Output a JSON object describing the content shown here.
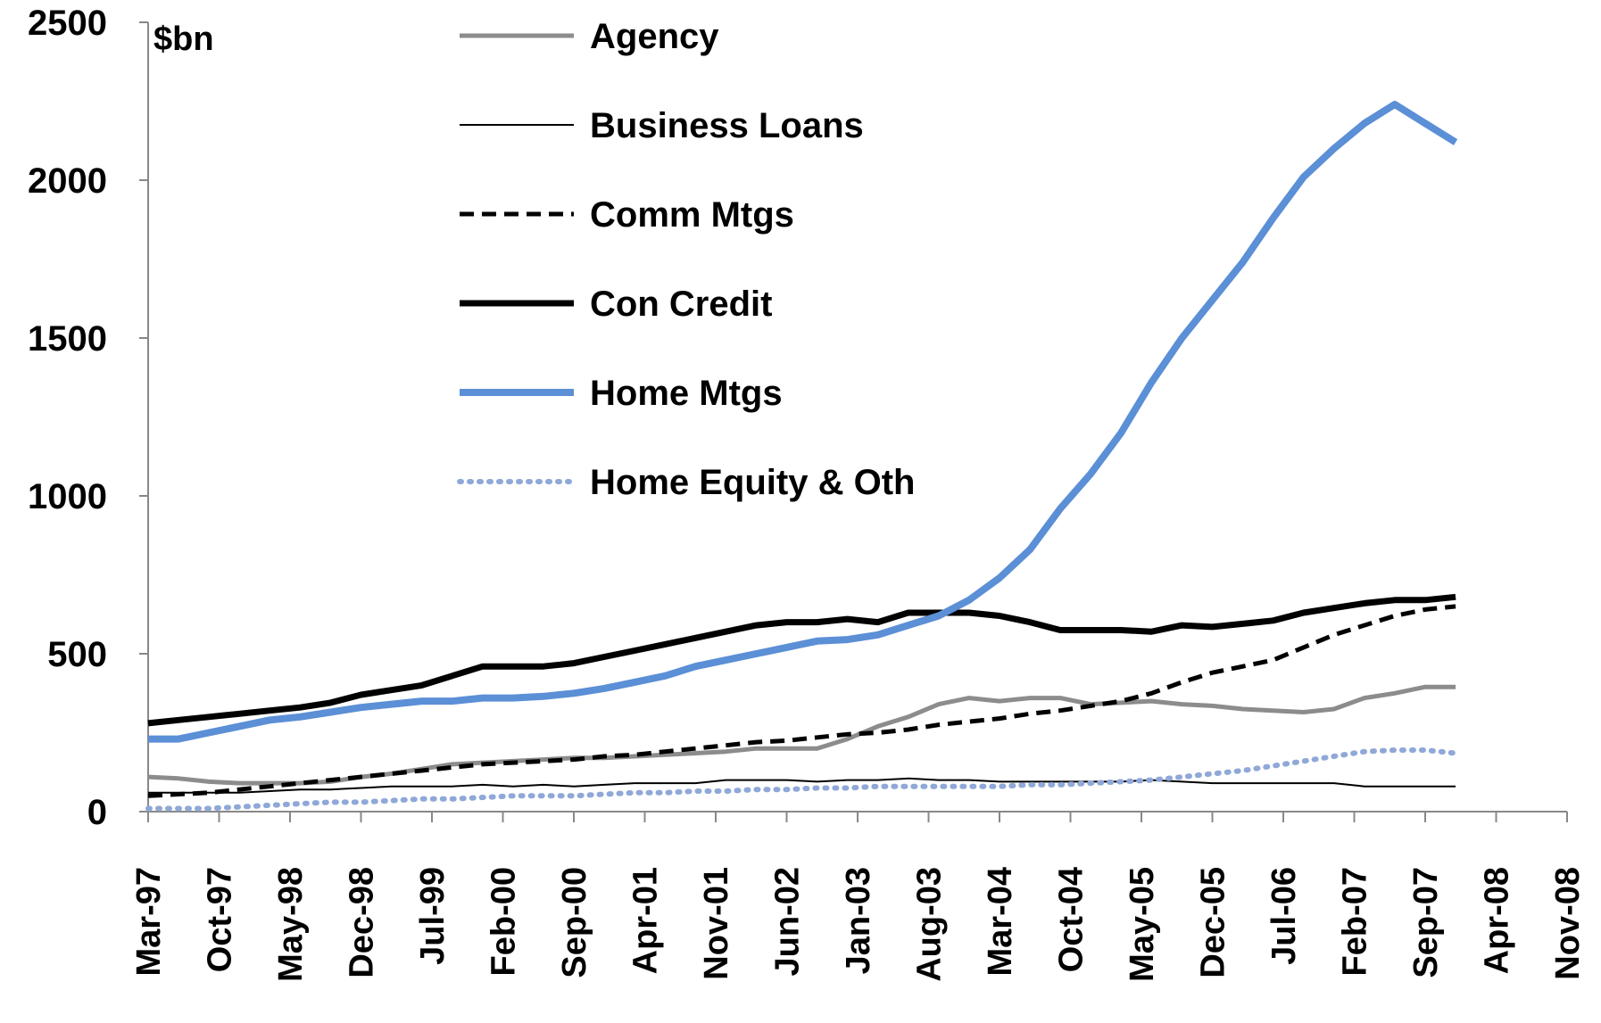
{
  "chart_data": {
    "type": "line",
    "y_label": "$bn",
    "x": [
      "Mar-97",
      "Jun-97",
      "Sep-97",
      "Dec-97",
      "Mar-98",
      "Jun-98",
      "Sep-98",
      "Dec-98",
      "Mar-99",
      "Jun-99",
      "Sep-99",
      "Dec-99",
      "Mar-00",
      "Jun-00",
      "Sep-00",
      "Dec-00",
      "Mar-01",
      "Jun-01",
      "Sep-01",
      "Dec-01",
      "Mar-02",
      "Jun-02",
      "Sep-02",
      "Dec-02",
      "Mar-03",
      "Jun-03",
      "Sep-03",
      "Dec-03",
      "Mar-04",
      "Jun-04",
      "Sep-04",
      "Dec-04",
      "Mar-05",
      "Jun-05",
      "Sep-05",
      "Dec-05",
      "Mar-06",
      "Jun-06",
      "Sep-06",
      "Dec-06",
      "Mar-07",
      "Jun-07",
      "Sep-07",
      "Dec-07"
    ],
    "xlim": [
      "Mar-97",
      "Nov-08"
    ],
    "xticks": [
      "Mar-97",
      "Oct-97",
      "May-98",
      "Dec-98",
      "Jul-99",
      "Feb-00",
      "Sep-00",
      "Apr-01",
      "Nov-01",
      "Jun-02",
      "Jan-03",
      "Aug-03",
      "Mar-04",
      "Oct-04",
      "May-05",
      "Dec-05",
      "Jul-06",
      "Feb-07",
      "Sep-07",
      "Apr-08",
      "Nov-08"
    ],
    "ylim": [
      0,
      2500
    ],
    "yticks": [
      0,
      500,
      1000,
      1500,
      2000,
      2500
    ],
    "legend": "upper left",
    "series": [
      {
        "name": "Agency",
        "color": "#8c8c8c",
        "style": "solid",
        "width": 5,
        "values": [
          110,
          105,
          95,
          90,
          90,
          90,
          95,
          110,
          120,
          135,
          150,
          155,
          160,
          165,
          170,
          170,
          175,
          180,
          185,
          190,
          200,
          200,
          200,
          230,
          270,
          300,
          340,
          360,
          350,
          360,
          360,
          340,
          345,
          350,
          340,
          335,
          325,
          320,
          315,
          325,
          360,
          375,
          395,
          395
        ]
      },
      {
        "name": "Business Loans",
        "color": "#000000",
        "style": "solid",
        "width": 2,
        "values": [
          60,
          60,
          60,
          60,
          65,
          70,
          70,
          75,
          80,
          80,
          80,
          85,
          80,
          85,
          80,
          85,
          90,
          90,
          90,
          100,
          100,
          100,
          95,
          100,
          100,
          105,
          100,
          100,
          95,
          95,
          95,
          95,
          95,
          100,
          95,
          90,
          90,
          90,
          90,
          90,
          80,
          80,
          80,
          80
        ]
      },
      {
        "name": "Comm Mtgs",
        "color": "#000000",
        "style": "dashed",
        "width": 5,
        "values": [
          50,
          55,
          60,
          70,
          80,
          90,
          100,
          110,
          120,
          130,
          140,
          150,
          155,
          160,
          165,
          175,
          180,
          190,
          200,
          210,
          220,
          225,
          235,
          245,
          250,
          260,
          275,
          285,
          295,
          310,
          320,
          335,
          350,
          375,
          410,
          440,
          460,
          480,
          520,
          560,
          590,
          620,
          640,
          650
        ]
      },
      {
        "name": "Con Credit",
        "color": "#000000",
        "style": "solid",
        "width": 7,
        "values": [
          280,
          290,
          300,
          310,
          320,
          330,
          345,
          370,
          385,
          400,
          430,
          460,
          460,
          460,
          470,
          490,
          510,
          530,
          550,
          570,
          590,
          600,
          600,
          610,
          600,
          630,
          630,
          630,
          620,
          600,
          575,
          575,
          575,
          570,
          590,
          585,
          595,
          605,
          630,
          645,
          660,
          670,
          670,
          680
        ]
      },
      {
        "name": "Home Mtgs",
        "color": "#5b8fd6",
        "style": "solid",
        "width": 8,
        "values": [
          230,
          230,
          250,
          270,
          290,
          300,
          315,
          330,
          340,
          350,
          350,
          360,
          360,
          365,
          375,
          390,
          410,
          430,
          460,
          480,
          500,
          520,
          540,
          545,
          560,
          590,
          620,
          670,
          740,
          830,
          960,
          1070,
          1200,
          1360,
          1500,
          1620,
          1740,
          1880,
          2010,
          2100,
          2180,
          2240,
          2180,
          2120
        ]
      },
      {
        "name": "Home Equity & Oth",
        "color": "#8fa8d8",
        "style": "dotted",
        "width": 6,
        "values": [
          10,
          10,
          10,
          15,
          20,
          25,
          30,
          30,
          35,
          40,
          40,
          45,
          50,
          50,
          50,
          55,
          60,
          60,
          65,
          65,
          70,
          70,
          75,
          75,
          80,
          80,
          80,
          80,
          80,
          85,
          85,
          90,
          95,
          100,
          110,
          120,
          130,
          145,
          160,
          175,
          190,
          195,
          195,
          185
        ]
      }
    ]
  }
}
